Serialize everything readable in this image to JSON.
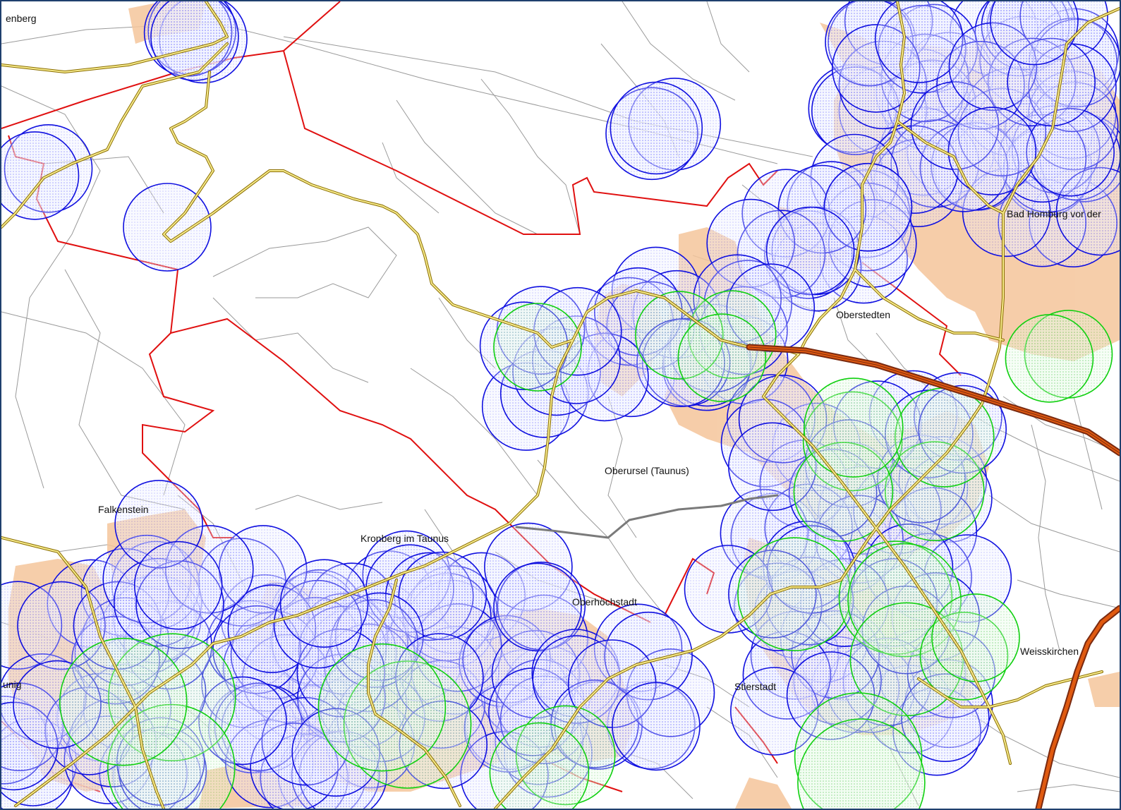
{
  "map": {
    "colors": {
      "background": "#ffffff",
      "frame": "#1f3f6e",
      "minor_road": "#9a9a9a",
      "main_road_fill": "#f5e98a",
      "main_road_casing": "#8a6d00",
      "motorway_fill": "#e05a10",
      "motorway_casing": "#7a2a10",
      "boundary": "#e01010",
      "settlement": "#f5c59b",
      "coverage_blue": "#1010e0",
      "coverage_green": "#10d010"
    },
    "labels": [
      {
        "id": "enberg",
        "text": "enberg"
      },
      {
        "id": "oberstedten",
        "text": "Oberstedten"
      },
      {
        "id": "bad-homburg",
        "text": "Bad Homburg vor der"
      },
      {
        "id": "oberursel",
        "text": "Oberursel (Taunus)"
      },
      {
        "id": "falkenstein",
        "text": "Falkenstein"
      },
      {
        "id": "kronberg",
        "text": "Kronberg im Taunus"
      },
      {
        "id": "oberhoechstadt",
        "text": "Oberhöchstadt"
      },
      {
        "id": "weisskirchen",
        "text": "Weisskirchen"
      },
      {
        "id": "stierstadt",
        "text": "Stierstadt"
      },
      {
        "id": "konigstein-edge",
        "text": "unig"
      }
    ]
  }
}
